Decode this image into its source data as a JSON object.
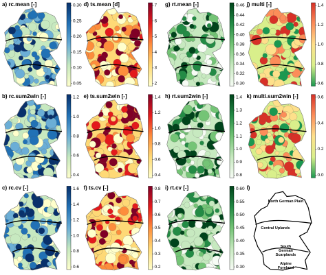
{
  "panels": [
    {
      "label": "a) rc.mean [-]",
      "ticks": [
        "0.30",
        "0.25",
        "0.20",
        "0.15",
        "0.10",
        "0.05"
      ],
      "colors": [
        "#08306b",
        "#2171b5",
        "#6baed6",
        "#c7e9c0",
        "#ffffcc"
      ]
    },
    {
      "label": "d) ts.mean [d]",
      "ticks": [
        "7",
        "6",
        "5",
        "4",
        "3",
        "2"
      ],
      "colors": [
        "#800026",
        "#e31a1c",
        "#fd8d3c",
        "#fed976",
        "#ffffcc"
      ]
    },
    {
      "label": "g) rt.mean [-]",
      "ticks": [
        "0.46",
        "0.44",
        "0.42",
        "0.40",
        "0.38",
        "0.36",
        "0.34",
        "0.32",
        "0.30"
      ],
      "colors": [
        "#00441b",
        "#238b45",
        "#74c476",
        "#c7e9c0",
        "#f7fcf5"
      ]
    },
    {
      "label": "j) multi [-]",
      "ticks": [
        "1.4",
        "1.2",
        "1.0",
        "0.8",
        "0.6"
      ],
      "colors": [
        "#d73027",
        "#fc8d59",
        "#fee08b",
        "#d9ef8b",
        "#1a9850"
      ]
    },
    {
      "label": "b) rc.sum2win [-]",
      "ticks": [
        "1.2",
        "1.0",
        "0.8",
        "0.6",
        "0.4"
      ],
      "colors": [
        "#08306b",
        "#2171b5",
        "#6baed6",
        "#c7e9c0",
        "#ffffcc"
      ]
    },
    {
      "label": "e) ts.sum2win [-]",
      "ticks": [
        "1.4",
        "1.2",
        "1.0",
        "0.8",
        "0.6",
        "0.4"
      ],
      "colors": [
        "#800026",
        "#e31a1c",
        "#fd8d3c",
        "#fed976",
        "#ffffcc"
      ]
    },
    {
      "label": "h) rt.sum2win [-]",
      "ticks": [
        "1.4",
        "1.3",
        "1.2",
        "1.1",
        "1.0",
        "0.9",
        "0.8"
      ],
      "colors": [
        "#00441b",
        "#238b45",
        "#74c476",
        "#c7e9c0",
        "#f7fcf5"
      ]
    },
    {
      "label": "k) multi.sum2win [-]",
      "ticks": [
        "0.6",
        "0.4",
        "0.2",
        "0.0"
      ],
      "colors": [
        "#d73027",
        "#fc8d59",
        "#fee08b",
        "#d9ef8b",
        "#1a9850"
      ]
    },
    {
      "label": "c) rc.cv [-]",
      "ticks": [
        "1.6",
        "1.4",
        "1.2",
        "1.0",
        "0.8",
        "0.6"
      ],
      "colors": [
        "#08306b",
        "#2171b5",
        "#6baed6",
        "#c7e9c0",
        "#ffffcc"
      ]
    },
    {
      "label": "f) ts.cv [-]",
      "ticks": [
        "0.8",
        "0.7",
        "0.6",
        "0.5",
        "0.4",
        "0.3",
        "0.2"
      ],
      "colors": [
        "#800026",
        "#e31a1c",
        "#fd8d3c",
        "#fed976",
        "#ffffcc"
      ]
    },
    {
      "label": "i) rt.cv [-]",
      "ticks": [
        "0.60",
        "0.55",
        "0.50",
        "0.45",
        "0.40",
        "0.35",
        "0.30"
      ],
      "colors": [
        "#00441b",
        "#238b45",
        "#74c476",
        "#c7e9c0",
        "#f7fcf5"
      ]
    }
  ],
  "region_panel": {
    "label": "l)",
    "regions": [
      "North German Plain",
      "Central Uplands",
      "South",
      "German",
      "Scarplands",
      "Alpine",
      "Foreland"
    ]
  }
}
